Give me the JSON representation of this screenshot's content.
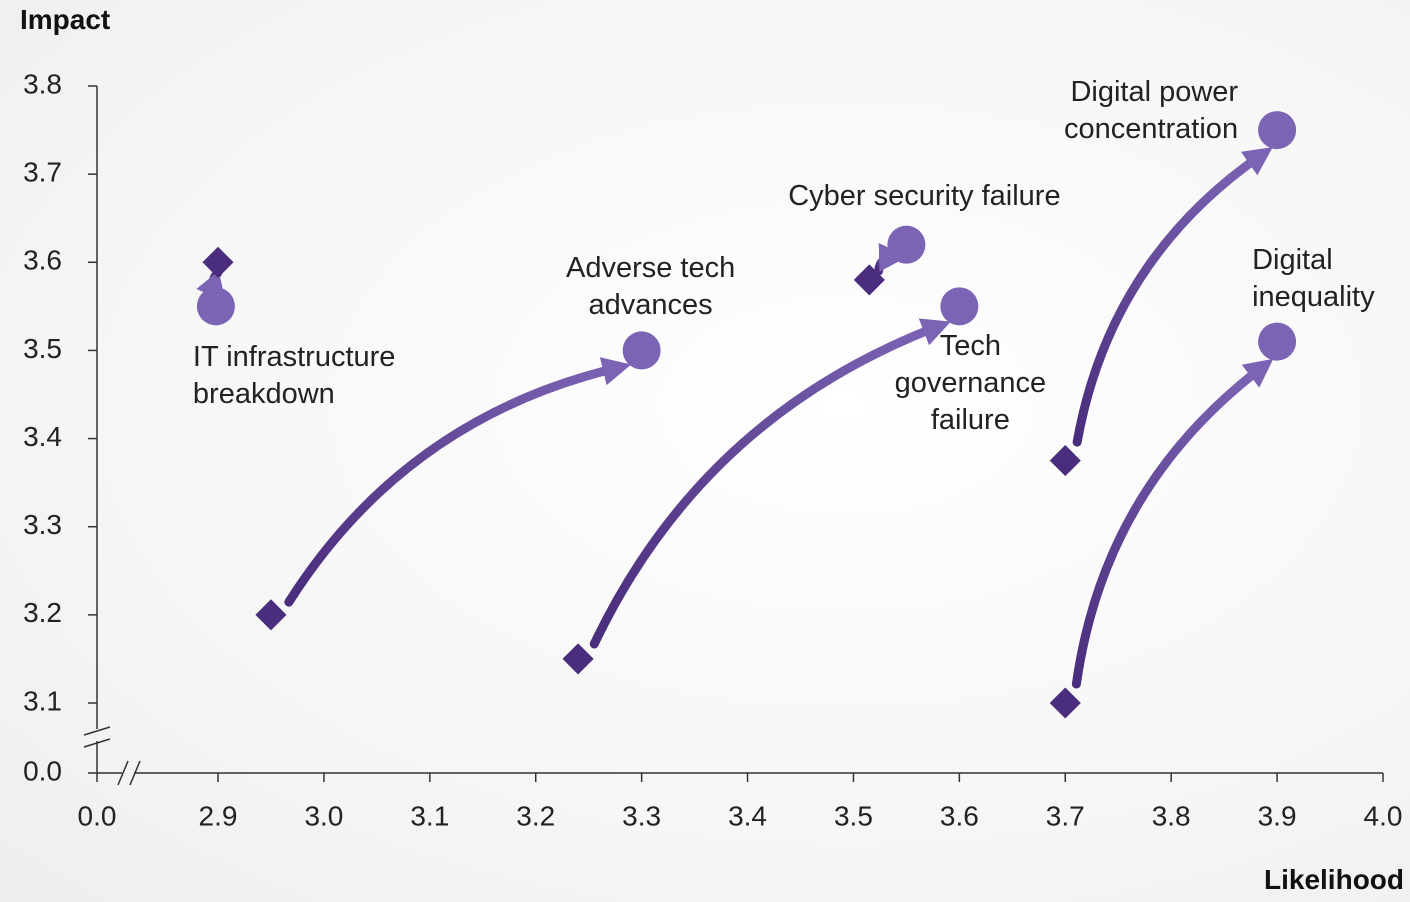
{
  "chart_data": {
    "type": "arrow-scatter",
    "y_label": "Impact",
    "x_label": "Likelihood",
    "xlim": [
      0,
      4.0
    ],
    "ylim": [
      0,
      3.8
    ],
    "axis_break": true,
    "xticks": [
      {
        "value": 0,
        "label": "0.0"
      },
      2.9,
      {
        "value": 3.0,
        "label": "3.0"
      },
      3.1,
      3.2,
      3.3,
      3.4,
      3.5,
      3.6,
      3.7,
      3.8,
      3.9,
      {
        "value": 4.0,
        "label": "4.0"
      }
    ],
    "yticks": [
      {
        "value": 0,
        "label": "0.0"
      },
      3.1,
      3.2,
      3.3,
      3.4,
      3.5,
      3.6,
      3.7,
      3.8
    ],
    "color_from": "#4a2d7c",
    "color_to": "#7c64b4",
    "points": [
      {
        "label": "IT infrastructure\nbreakdown",
        "x": [
          2.9,
          2.85
        ],
        "y": [
          3.6,
          3.55
        ]
      },
      {
        "label": "Adverse tech\nadvances",
        "x": [
          2.95,
          3.3
        ],
        "y": [
          3.2,
          3.5
        ]
      },
      {
        "label": "Tech\ngovernance\nfailure",
        "x": [
          3.24,
          3.6
        ],
        "y": [
          3.15,
          3.55
        ]
      },
      {
        "label": "Cyber security failure",
        "x": [
          3.515,
          3.55
        ],
        "y": [
          3.58,
          3.62
        ]
      },
      {
        "label": "Digital power concentration",
        "x": [
          3.7,
          3.9
        ],
        "y": [
          3.375,
          3.75
        ]
      },
      {
        "label": "Digital\ninequality",
        "x": [
          3.7,
          3.9
        ],
        "y": [
          3.1,
          3.51
        ]
      }
    ]
  }
}
